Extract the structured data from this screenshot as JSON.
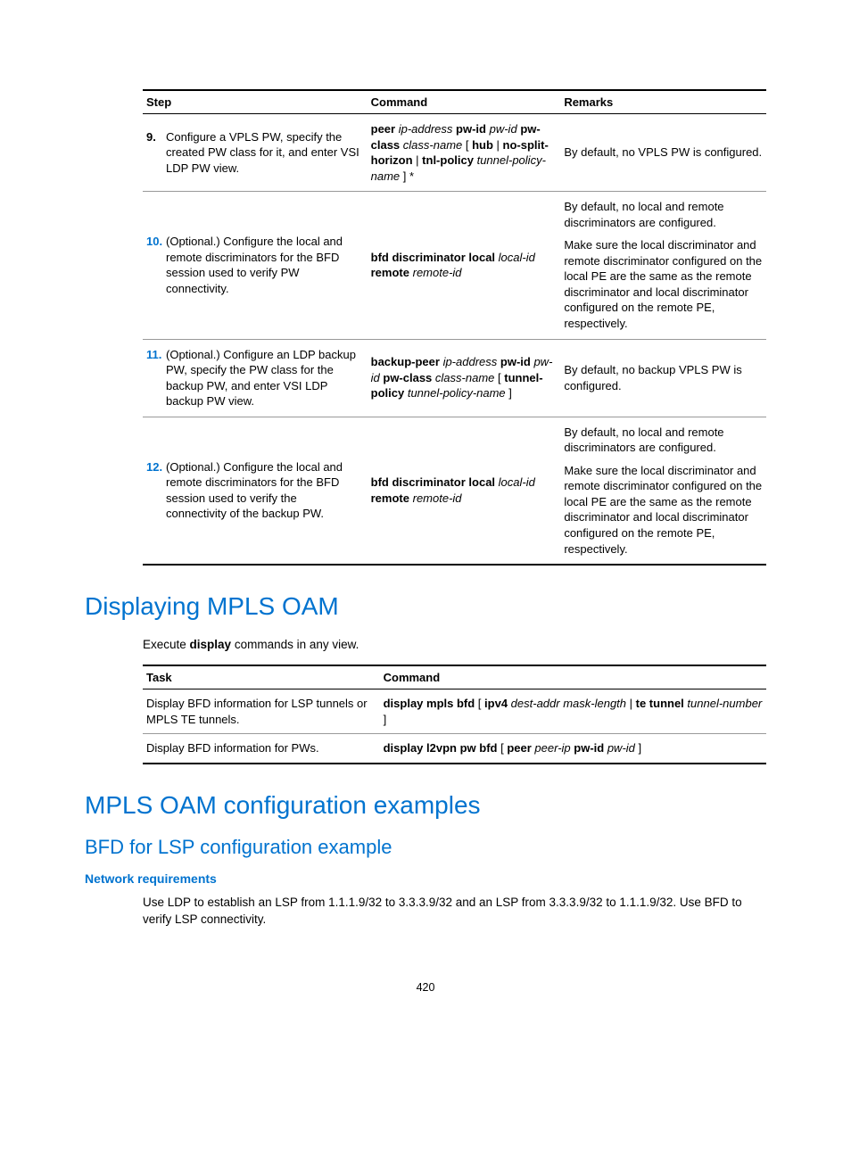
{
  "table1": {
    "headers": {
      "step": "Step",
      "command": "Command",
      "remarks": "Remarks"
    },
    "rows": [
      {
        "num": "9.",
        "num_blue": false,
        "step": "Configure a VPLS PW, specify the created PW class for it, and enter VSI LDP PW view.",
        "cmd_html": "<span class=\"bold\">peer</span> <span class=\"italic\">ip-address</span> <span class=\"bold\">pw-id</span> <span class=\"italic\">pw-id</span> <span class=\"bold\">pw-class</span> <span class=\"italic\">class-name</span> [ <span class=\"bold\">hub</span> | <span class=\"bold\">no-split-horizon</span> | <span class=\"bold\">tnl-policy</span> <span class=\"italic\">tunnel-policy-name</span> ] *",
        "rem_html": "By default, no VPLS PW is configured."
      },
      {
        "num": "10.",
        "num_blue": true,
        "step": "(Optional.) Configure the local and remote discriminators for the BFD session used to verify PW connectivity.",
        "cmd_html": "<span class=\"bold\">bfd discriminator local</span> <span class=\"italic\">local-id</span> <span class=\"bold\">remote</span> <span class=\"italic\">remote-id</span>",
        "rem_html": "<div class=\"para\">By default, no local and remote discriminators are configured.</div><div class=\"para\">Make sure the local discriminator and remote discriminator configured on the local PE are the same as the remote discriminator and local discriminator configured on the remote PE, respectively.</div>"
      },
      {
        "num": "11.",
        "num_blue": true,
        "step": "(Optional.) Configure an LDP backup PW, specify the PW class for the backup PW, and enter VSI LDP backup PW view.",
        "cmd_html": "<span class=\"bold\">backup-peer</span> <span class=\"italic\">ip-address</span> <span class=\"bold\">pw-id</span> <span class=\"italic\">pw-id</span> <span class=\"bold\">pw-class</span> <span class=\"italic\">class-name</span> [ <span class=\"bold\">tunnel-policy</span> <span class=\"italic\">tunnel-policy-name</span> ]",
        "rem_html": "By default, no backup VPLS PW is configured."
      },
      {
        "num": "12.",
        "num_blue": true,
        "step": "(Optional.) Configure the local and remote discriminators for the BFD session used to verify the connectivity of the backup PW.",
        "cmd_html": "<span class=\"bold\">bfd discriminator local</span> <span class=\"italic\">local-id</span> <span class=\"bold\">remote</span> <span class=\"italic\">remote-id</span>",
        "rem_html": "<div class=\"para\">By default, no local and remote discriminators are configured.</div><div class=\"para\">Make sure the local discriminator and remote discriminator configured on the local PE are the same as the remote discriminator and local discriminator configured on the remote PE, respectively.</div>"
      }
    ]
  },
  "section1": {
    "title": "Displaying MPLS OAM",
    "intro_html": "Execute <span class=\"bold\">display</span> commands in any view."
  },
  "table2": {
    "headers": {
      "task": "Task",
      "command": "Command"
    },
    "rows": [
      {
        "task": "Display BFD information for LSP tunnels or MPLS TE tunnels.",
        "cmd_html": "<span class=\"bold\">display mpls bfd</span> [ <span class=\"bold\">ipv4</span> <span class=\"italic\">dest-addr mask-length</span> | <span class=\"bold\">te tunnel</span> <span class=\"italic\">tunnel-number</span> ]"
      },
      {
        "task": "Display BFD information for PWs.",
        "cmd_html": "<span class=\"bold\">display l2vpn pw bfd</span> [ <span class=\"bold\">peer</span> <span class=\"italic\">peer-ip</span> <span class=\"bold\">pw-id</span> <span class=\"italic\">pw-id</span> ]"
      }
    ]
  },
  "section2": {
    "title": "MPLS OAM configuration examples",
    "sub": "BFD for LSP configuration example",
    "req": "Network requirements",
    "body": "Use LDP to establish an LSP from 1.1.1.9/32 to 3.3.3.9/32 and an LSP from 3.3.3.9/32 to 1.1.1.9/32. Use BFD to verify LSP connectivity."
  },
  "pagenum": "420"
}
